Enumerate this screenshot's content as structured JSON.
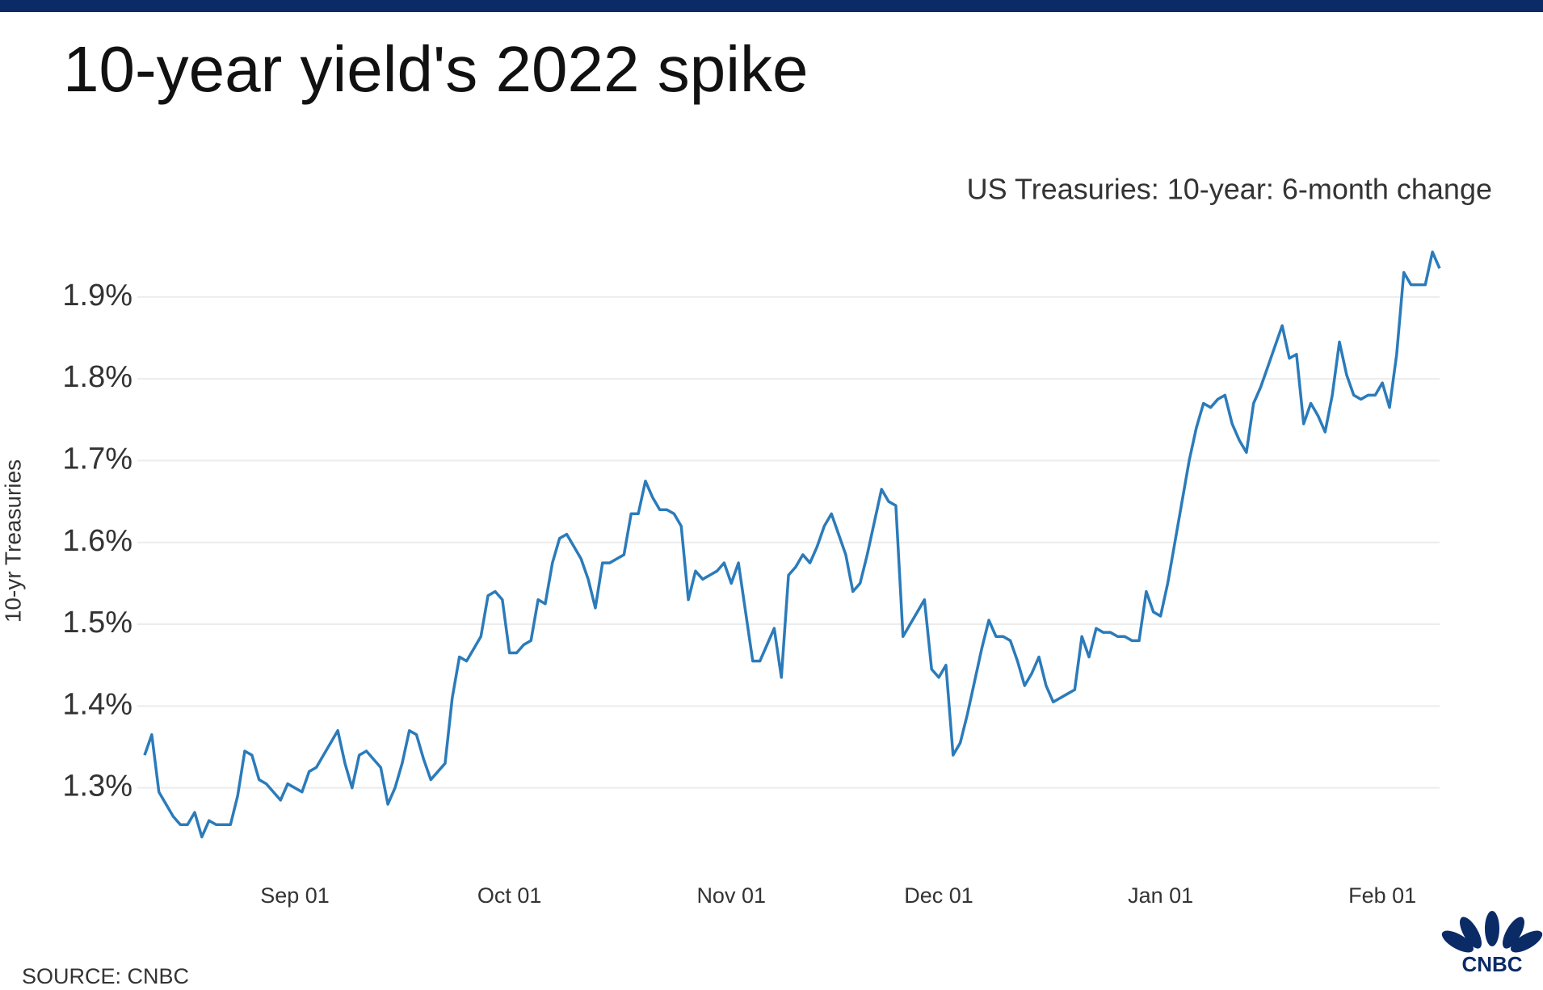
{
  "chart_data": {
    "type": "line",
    "title": "10-year yield's 2022 spike",
    "subtitle": "US Treasuries: 10-year: 6-month change",
    "ylabel": "10-yr Treasuries",
    "categories": [
      null,
      null,
      null,
      null,
      null,
      null,
      null,
      null,
      null,
      null,
      null,
      null,
      null,
      null,
      null,
      null,
      null,
      null,
      null,
      null,
      null,
      "Sep 01",
      null,
      null,
      null,
      null,
      null,
      null,
      null,
      null,
      null,
      null,
      null,
      null,
      null,
      null,
      null,
      null,
      null,
      null,
      null,
      null,
      null,
      null,
      null,
      null,
      null,
      null,
      null,
      null,
      null,
      "Oct 01",
      null,
      null,
      null,
      null,
      null,
      null,
      null,
      null,
      null,
      null,
      null,
      null,
      null,
      null,
      null,
      null,
      null,
      null,
      null,
      null,
      null,
      null,
      null,
      null,
      null,
      null,
      null,
      null,
      null,
      null,
      "Nov 01",
      null,
      null,
      null,
      null,
      null,
      null,
      null,
      null,
      null,
      null,
      null,
      null,
      null,
      null,
      null,
      null,
      null,
      null,
      null,
      null,
      null,
      null,
      null,
      null,
      null,
      null,
      null,
      null,
      "Dec 01",
      null,
      null,
      null,
      null,
      null,
      null,
      null,
      null,
      null,
      null,
      null,
      null,
      null,
      null,
      null,
      null,
      null,
      null,
      null,
      null,
      null,
      null,
      null,
      null,
      null,
      null,
      null,
      null,
      null,
      null,
      "Jan 01",
      null,
      null,
      null,
      null,
      null,
      null,
      null,
      null,
      null,
      null,
      null,
      null,
      null,
      null,
      null,
      null,
      null,
      null,
      null,
      null,
      null,
      null,
      null,
      null,
      null,
      null,
      null,
      null,
      null,
      null,
      "Feb 01",
      null,
      null,
      null,
      null,
      null,
      null,
      null,
      null
    ],
    "values": [
      1.34,
      1.365,
      1.295,
      1.28,
      1.265,
      1.255,
      1.255,
      1.27,
      1.24,
      1.26,
      1.255,
      1.255,
      1.255,
      1.29,
      1.345,
      1.34,
      1.31,
      1.305,
      1.295,
      1.285,
      1.305,
      1.3,
      1.295,
      1.32,
      1.325,
      1.34,
      1.355,
      1.37,
      1.33,
      1.3,
      1.34,
      1.345,
      1.335,
      1.325,
      1.28,
      1.3,
      1.33,
      1.37,
      1.365,
      1.335,
      1.31,
      1.32,
      1.33,
      1.41,
      1.46,
      1.455,
      1.47,
      1.485,
      1.535,
      1.54,
      1.53,
      1.465,
      1.465,
      1.475,
      1.48,
      1.53,
      1.525,
      1.575,
      1.605,
      1.61,
      1.595,
      1.58,
      1.555,
      1.52,
      1.575,
      1.575,
      1.58,
      1.585,
      1.635,
      1.635,
      1.675,
      1.655,
      1.64,
      1.64,
      1.635,
      1.62,
      1.53,
      1.565,
      1.555,
      1.56,
      1.565,
      1.575,
      1.55,
      1.575,
      1.515,
      1.455,
      1.455,
      1.475,
      1.495,
      1.435,
      1.56,
      1.57,
      1.585,
      1.575,
      1.595,
      1.62,
      1.635,
      1.61,
      1.585,
      1.54,
      1.55,
      1.585,
      1.625,
      1.665,
      1.65,
      1.645,
      1.485,
      1.5,
      1.515,
      1.53,
      1.445,
      1.435,
      1.45,
      1.34,
      1.355,
      1.39,
      1.43,
      1.47,
      1.505,
      1.485,
      1.485,
      1.48,
      1.455,
      1.425,
      1.44,
      1.46,
      1.425,
      1.405,
      1.41,
      1.415,
      1.42,
      1.485,
      1.46,
      1.495,
      1.49,
      1.49,
      1.485,
      1.485,
      1.48,
      1.48,
      1.54,
      1.515,
      1.51,
      1.55,
      1.6,
      1.65,
      1.7,
      1.74,
      1.77,
      1.765,
      1.775,
      1.78,
      1.745,
      1.725,
      1.71,
      1.77,
      1.79,
      1.815,
      1.84,
      1.865,
      1.825,
      1.83,
      1.745,
      1.77,
      1.755,
      1.735,
      1.78,
      1.845,
      1.805,
      1.78,
      1.775,
      1.78,
      1.78,
      1.795,
      1.765,
      1.83,
      1.93,
      1.915,
      1.915,
      1.915,
      1.955,
      1.935
    ],
    "color": "#2b7bba",
    "ylim": [
      1.2,
      1.96
    ],
    "yticks": [
      {
        "value": 1.3,
        "label": "1.3%"
      },
      {
        "value": 1.4,
        "label": "1.4%"
      },
      {
        "value": 1.5,
        "label": "1.5%"
      },
      {
        "value": 1.6,
        "label": "1.6%"
      },
      {
        "value": 1.7,
        "label": "1.7%"
      },
      {
        "value": 1.8,
        "label": "1.8%"
      },
      {
        "value": 1.9,
        "label": "1.9%"
      }
    ],
    "grid": true
  },
  "source": "SOURCE: CNBC",
  "logo": "CNBC"
}
